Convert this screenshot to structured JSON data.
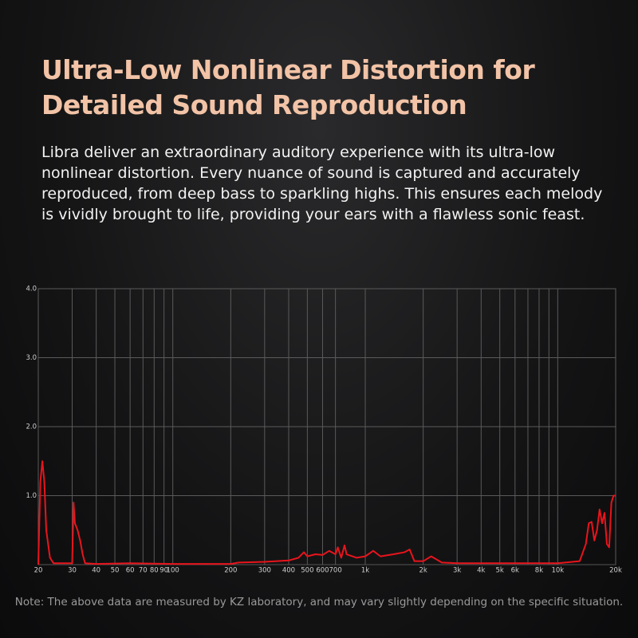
{
  "header": {
    "title_lines": [
      "Ultra-Low Nonlinear Distortion for",
      "Detailed Sound Reproduction"
    ],
    "description": "Libra deliver an extraordinary auditory experience with its ultra-low nonlinear distortion. Every nuance of sound is captured and accurately reproduced, from deep bass to sparkling highs. This ensures each melody is vividly brought to life, providing your ears with a flawless sonic feast."
  },
  "chart_data": {
    "type": "line",
    "color": "#e8141c",
    "xscale": "log",
    "grid": true,
    "xlim": [
      20,
      20000
    ],
    "ylim": [
      0,
      4
    ],
    "xticks": [
      20,
      30,
      40,
      50,
      60,
      70,
      80,
      90,
      100,
      200,
      300,
      400,
      500,
      600,
      700,
      {
        "value": 1000,
        "label": "1k"
      },
      {
        "value": 2000,
        "label": "2k"
      },
      {
        "value": 3000,
        "label": "3k"
      },
      {
        "value": 4000,
        "label": "4k"
      },
      {
        "value": 5000,
        "label": "5k"
      },
      {
        "value": 6000,
        "label": "6k"
      },
      {
        "value": 8000,
        "label": "8k"
      },
      {
        "value": 10000,
        "label": "10k"
      },
      {
        "value": 20000,
        "label": "20k"
      }
    ],
    "xgrid_extra": [
      7000,
      9000
    ],
    "yticks": [
      {
        "value": 1,
        "label": "1.0"
      },
      {
        "value": 2,
        "label": "2.0"
      },
      {
        "value": 3,
        "label": "3.0"
      },
      {
        "value": 4,
        "label": "4.0"
      }
    ],
    "x": [
      20,
      20.5,
      21,
      21.5,
      22,
      23,
      24,
      30,
      30.5,
      31,
      32,
      33,
      34,
      35,
      40,
      60,
      100,
      200,
      220,
      300,
      400,
      450,
      480,
      500,
      550,
      600,
      650,
      700,
      720,
      750,
      780,
      800,
      900,
      1000,
      1100,
      1200,
      1400,
      1600,
      1700,
      1800,
      2000,
      2200,
      2500,
      3000,
      5000,
      8000,
      10000,
      13000,
      14000,
      14500,
      15000,
      15500,
      16000,
      16500,
      17000,
      17500,
      18000,
      18500,
      19000,
      19500,
      20000
    ],
    "values": [
      0,
      1.2,
      1.5,
      1.2,
      0.5,
      0.1,
      0.02,
      0.02,
      0.9,
      0.6,
      0.5,
      0.35,
      0.15,
      0.02,
      0.01,
      0.02,
      0.01,
      0.01,
      0.03,
      0.04,
      0.06,
      0.1,
      0.18,
      0.12,
      0.15,
      0.14,
      0.2,
      0.15,
      0.25,
      0.1,
      0.28,
      0.15,
      0.1,
      0.12,
      0.2,
      0.12,
      0.15,
      0.18,
      0.22,
      0.05,
      0.05,
      0.12,
      0.03,
      0.02,
      0.02,
      0.02,
      0.02,
      0.05,
      0.3,
      0.6,
      0.62,
      0.35,
      0.5,
      0.8,
      0.6,
      0.75,
      0.3,
      0.25,
      0.9,
      1.0,
      1.0
    ]
  },
  "footer": {
    "note": "Note: The above data are measured by KZ laboratory, and may vary slightly depending on the specific situation."
  }
}
